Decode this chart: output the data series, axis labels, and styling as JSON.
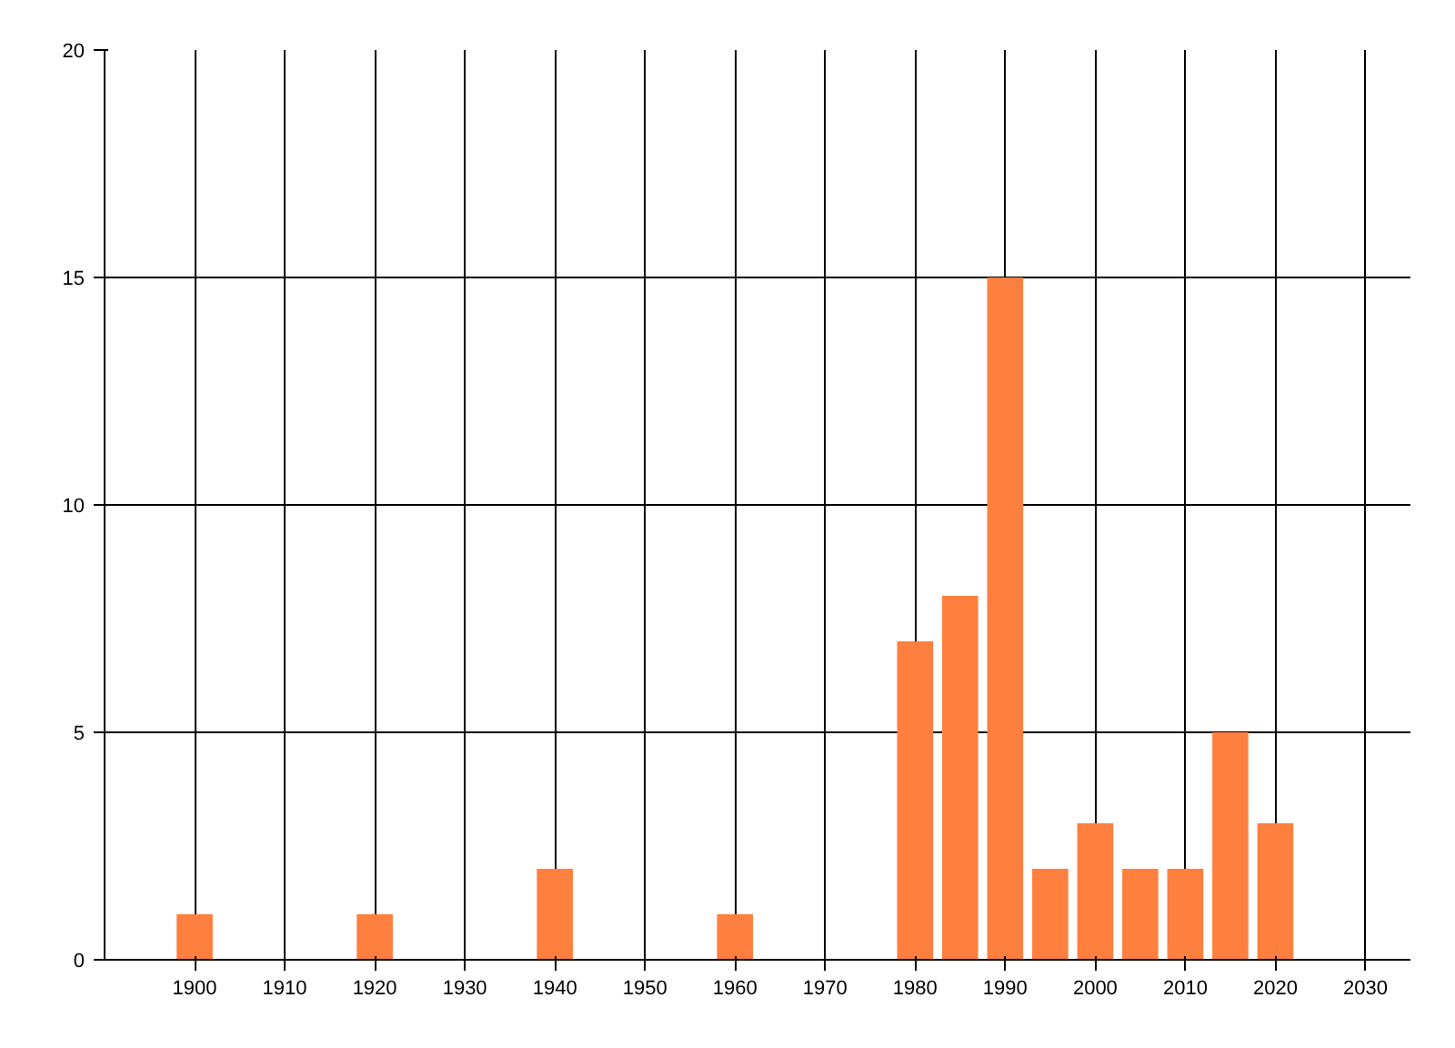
{
  "chart_data": {
    "type": "bar",
    "x": [
      1900,
      1920,
      1940,
      1960,
      1980,
      1985,
      1990,
      1995,
      2000,
      2005,
      2010,
      2015,
      2020
    ],
    "values": [
      1,
      1,
      2,
      1,
      7,
      8,
      15,
      2,
      3,
      2,
      2,
      5,
      3
    ],
    "color": "#ff7f3f",
    "xlim": [
      1890,
      2035
    ],
    "xticks": [
      1900,
      1910,
      1920,
      1930,
      1940,
      1950,
      1960,
      1970,
      1980,
      1990,
      2000,
      2010,
      2020,
      2030
    ],
    "ylim": [
      0,
      20
    ],
    "yticks": [
      0,
      5,
      10,
      15,
      20
    ],
    "grid": true
  }
}
